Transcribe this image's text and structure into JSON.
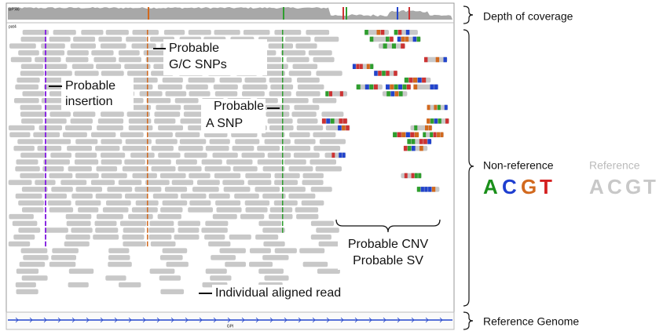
{
  "igv": {
    "coverage_label": "BP:46",
    "track_label": "pat4",
    "gene": "GPI"
  },
  "annotations": {
    "gc_snps": [
      "Probable",
      "G/C SNPs"
    ],
    "insertion": [
      "Probable",
      "insertion"
    ],
    "a_snp": [
      "Probable",
      "A SNP"
    ],
    "aligned_read": "Individual aligned read",
    "cnv_sv": [
      "Probable CNV",
      "Probable SV"
    ]
  },
  "legend": {
    "depth_of_coverage": "Depth of coverage",
    "non_reference": {
      "title": "Non-reference",
      "letters": [
        "A",
        "C",
        "G",
        "T"
      ]
    },
    "reference": {
      "title": "Reference",
      "letters": [
        "A",
        "C",
        "G",
        "T"
      ]
    },
    "reference_genome": "Reference Genome"
  }
}
